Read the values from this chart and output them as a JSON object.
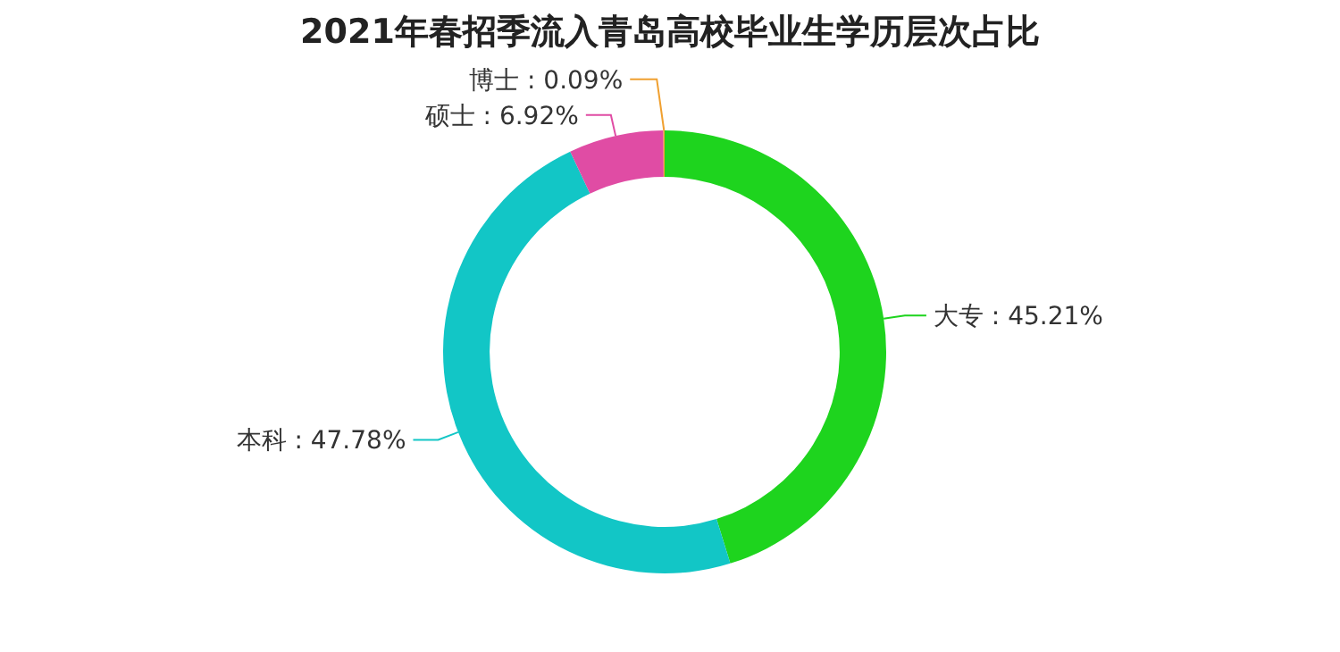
{
  "chart_data": {
    "type": "donut",
    "title": "2021年春招季流入青岛高校毕业生学历层次占比",
    "categories": [
      "大专",
      "本科",
      "硕士",
      "博士"
    ],
    "values": [
      45.21,
      47.78,
      6.92,
      0.09
    ],
    "value_labels": [
      "45.21%",
      "47.78%",
      "6.92%",
      "0.09%"
    ],
    "colors": [
      "#1ed41e",
      "#12c6c6",
      "#e04ca4",
      "#f0a030"
    ],
    "legend": false
  }
}
